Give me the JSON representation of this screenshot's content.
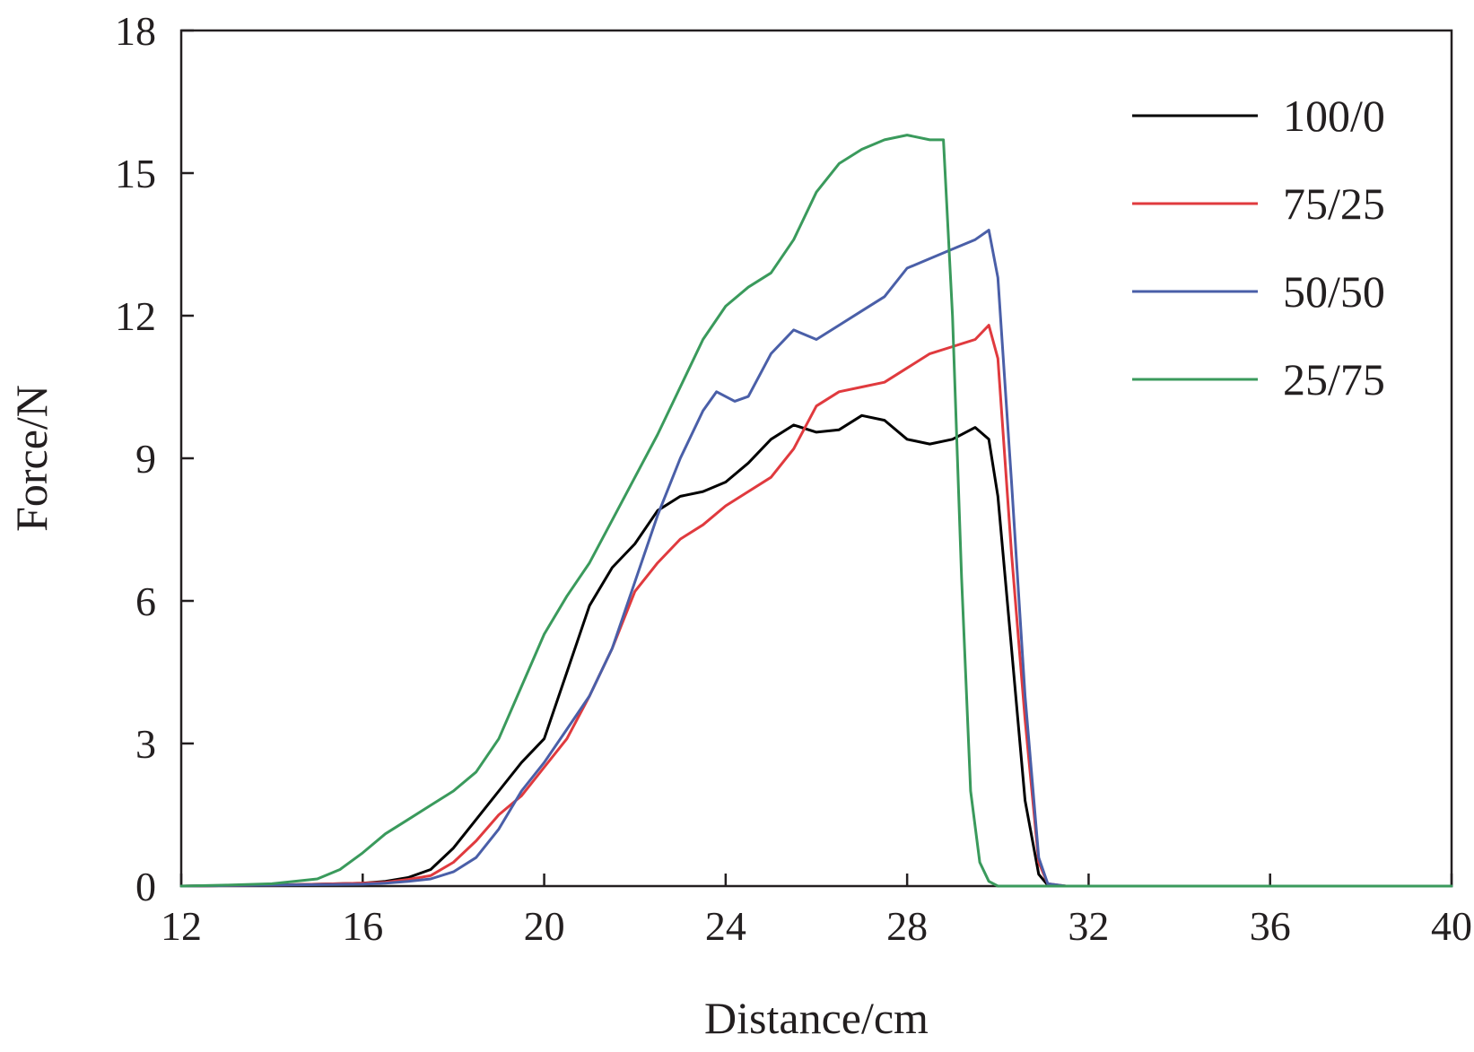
{
  "chart_data": {
    "type": "line",
    "xlabel": "Distance/cm",
    "ylabel": "Force/N",
    "xlim": [
      12,
      40
    ],
    "ylim": [
      0,
      18
    ],
    "xticks": [
      12,
      16,
      20,
      24,
      28,
      32,
      36,
      40
    ],
    "yticks": [
      0,
      3,
      6,
      9,
      12,
      15,
      18
    ],
    "grid": false,
    "legend_position": "top-right",
    "series": [
      {
        "name": "100/0",
        "color": "#000000",
        "x": [
          12,
          14,
          15,
          16,
          16.5,
          17,
          17.5,
          18,
          18.5,
          19,
          19.5,
          20,
          20.5,
          21,
          21.5,
          22,
          22.5,
          23,
          23.5,
          24,
          24.5,
          25,
          25.5,
          26,
          26.5,
          27,
          27.5,
          28,
          28.5,
          29,
          29.5,
          29.8,
          30,
          30.3,
          30.6,
          30.9,
          31.1,
          31.5,
          34,
          40
        ],
        "y": [
          0,
          0.02,
          0.04,
          0.06,
          0.1,
          0.18,
          0.35,
          0.8,
          1.4,
          2.0,
          2.6,
          3.1,
          4.5,
          5.9,
          6.7,
          7.2,
          7.9,
          8.2,
          8.3,
          8.5,
          8.9,
          9.4,
          9.7,
          9.55,
          9.6,
          9.9,
          9.8,
          9.4,
          9.3,
          9.4,
          9.65,
          9.4,
          8.2,
          5.0,
          1.8,
          0.25,
          0.02,
          0,
          0,
          0
        ]
      },
      {
        "name": "75/25",
        "color": "#e03a3e",
        "x": [
          12,
          14,
          15,
          16,
          16.5,
          17,
          17.5,
          18,
          18.5,
          19,
          19.5,
          20,
          20.5,
          21,
          21.5,
          22,
          22.5,
          23,
          23.5,
          24,
          24.5,
          25,
          25.5,
          26,
          26.5,
          27,
          27.5,
          28,
          28.5,
          29,
          29.5,
          29.8,
          30,
          30.3,
          30.6,
          30.9,
          31.1,
          31.5,
          34,
          40
        ],
        "y": [
          0,
          0.02,
          0.04,
          0.06,
          0.08,
          0.14,
          0.22,
          0.5,
          0.95,
          1.5,
          1.9,
          2.5,
          3.1,
          4.0,
          5.0,
          6.2,
          6.8,
          7.3,
          7.6,
          8.0,
          8.3,
          8.6,
          9.2,
          10.1,
          10.4,
          10.5,
          10.6,
          10.9,
          11.2,
          11.35,
          11.5,
          11.8,
          11.1,
          7.0,
          3.5,
          0.5,
          0.05,
          0,
          0,
          0
        ]
      },
      {
        "name": "50/50",
        "color": "#4a5fa8",
        "x": [
          12,
          14,
          15,
          16,
          16.5,
          17,
          17.5,
          18,
          18.5,
          19,
          19.5,
          20,
          20.5,
          21,
          21.5,
          22,
          22.5,
          23,
          23.5,
          23.8,
          24.2,
          24.5,
          25,
          25.5,
          26,
          26.5,
          27,
          27.5,
          28,
          28.5,
          29,
          29.5,
          29.8,
          30,
          30.3,
          30.6,
          30.9,
          31.1,
          31.5,
          34,
          40
        ],
        "y": [
          0,
          0.02,
          0.03,
          0.04,
          0.06,
          0.1,
          0.15,
          0.3,
          0.6,
          1.2,
          2.0,
          2.6,
          3.3,
          4.0,
          5.0,
          6.4,
          7.8,
          9.0,
          10.0,
          10.4,
          10.2,
          10.3,
          11.2,
          11.7,
          11.5,
          11.8,
          12.1,
          12.4,
          13.0,
          13.2,
          13.4,
          13.6,
          13.8,
          12.8,
          8.5,
          4.0,
          0.6,
          0.05,
          0,
          0,
          0
        ]
      },
      {
        "name": "25/75",
        "color": "#3a9a5c",
        "x": [
          12,
          13,
          14,
          15,
          15.5,
          16,
          16.5,
          17,
          17.5,
          18,
          18.5,
          19,
          19.5,
          20,
          20.5,
          21,
          21.5,
          22,
          22.5,
          23,
          23.5,
          24,
          24.5,
          25,
          25.5,
          26,
          26.5,
          27,
          27.5,
          28,
          28.5,
          28.8,
          29,
          29.2,
          29.4,
          29.6,
          29.8,
          30,
          32,
          40
        ],
        "y": [
          0,
          0.02,
          0.05,
          0.15,
          0.35,
          0.7,
          1.1,
          1.4,
          1.7,
          2.0,
          2.4,
          3.1,
          4.2,
          5.3,
          6.1,
          6.8,
          7.7,
          8.6,
          9.5,
          10.5,
          11.5,
          12.2,
          12.6,
          12.9,
          13.6,
          14.6,
          15.2,
          15.5,
          15.7,
          15.8,
          15.7,
          15.7,
          12.0,
          6.5,
          2.0,
          0.5,
          0.1,
          0,
          0,
          0
        ]
      }
    ]
  }
}
